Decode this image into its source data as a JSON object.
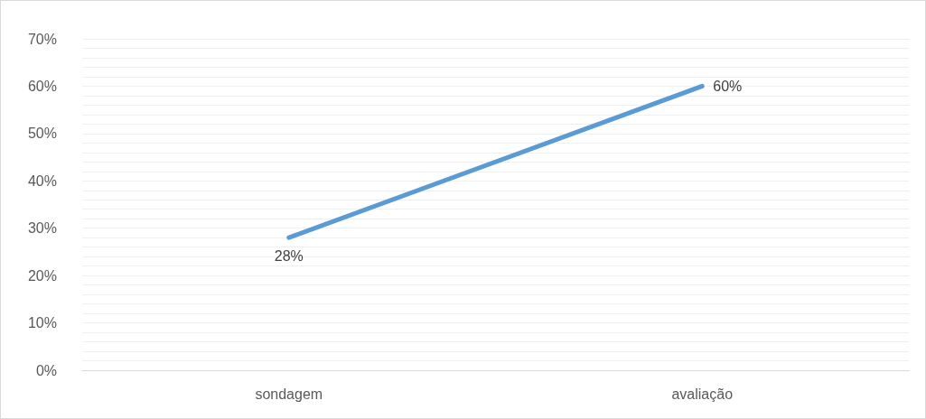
{
  "chart_data": {
    "type": "line",
    "categories": [
      "sondagem",
      "avaliação"
    ],
    "series": [
      {
        "color": "#5b9bd5",
        "values": [
          28,
          60
        ],
        "value_labels": [
          "28%",
          "60%"
        ]
      }
    ],
    "ylim": [
      0,
      70
    ],
    "yticks": [
      {
        "value": 0,
        "label": "0%"
      },
      {
        "value": 2,
        "label": null
      },
      {
        "value": 4,
        "label": null
      },
      {
        "value": 6,
        "label": null
      },
      {
        "value": 8,
        "label": null
      },
      {
        "value": 10,
        "label": "10%"
      },
      {
        "value": 12,
        "label": null
      },
      {
        "value": 14,
        "label": null
      },
      {
        "value": 16,
        "label": null
      },
      {
        "value": 18,
        "label": null
      },
      {
        "value": 20,
        "label": "20%"
      },
      {
        "value": 22,
        "label": null
      },
      {
        "value": 24,
        "label": null
      },
      {
        "value": 26,
        "label": null
      },
      {
        "value": 28,
        "label": null
      },
      {
        "value": 30,
        "label": "30%"
      },
      {
        "value": 32,
        "label": null
      },
      {
        "value": 34,
        "label": null
      },
      {
        "value": 36,
        "label": null
      },
      {
        "value": 38,
        "label": null
      },
      {
        "value": 40,
        "label": "40%"
      },
      {
        "value": 42,
        "label": null
      },
      {
        "value": 44,
        "label": null
      },
      {
        "value": 46,
        "label": null
      },
      {
        "value": 48,
        "label": null
      },
      {
        "value": 50,
        "label": "50%"
      },
      {
        "value": 52,
        "label": null
      },
      {
        "value": 54,
        "label": null
      },
      {
        "value": 56,
        "label": null
      },
      {
        "value": 58,
        "label": null
      },
      {
        "value": 60,
        "label": "60%"
      },
      {
        "value": 62,
        "label": null
      },
      {
        "value": 64,
        "label": null
      },
      {
        "value": 66,
        "label": null
      },
      {
        "value": 68,
        "label": null
      },
      {
        "value": 70,
        "label": "70%"
      }
    ],
    "grid": true,
    "marker": "none",
    "line_style": "solid"
  }
}
